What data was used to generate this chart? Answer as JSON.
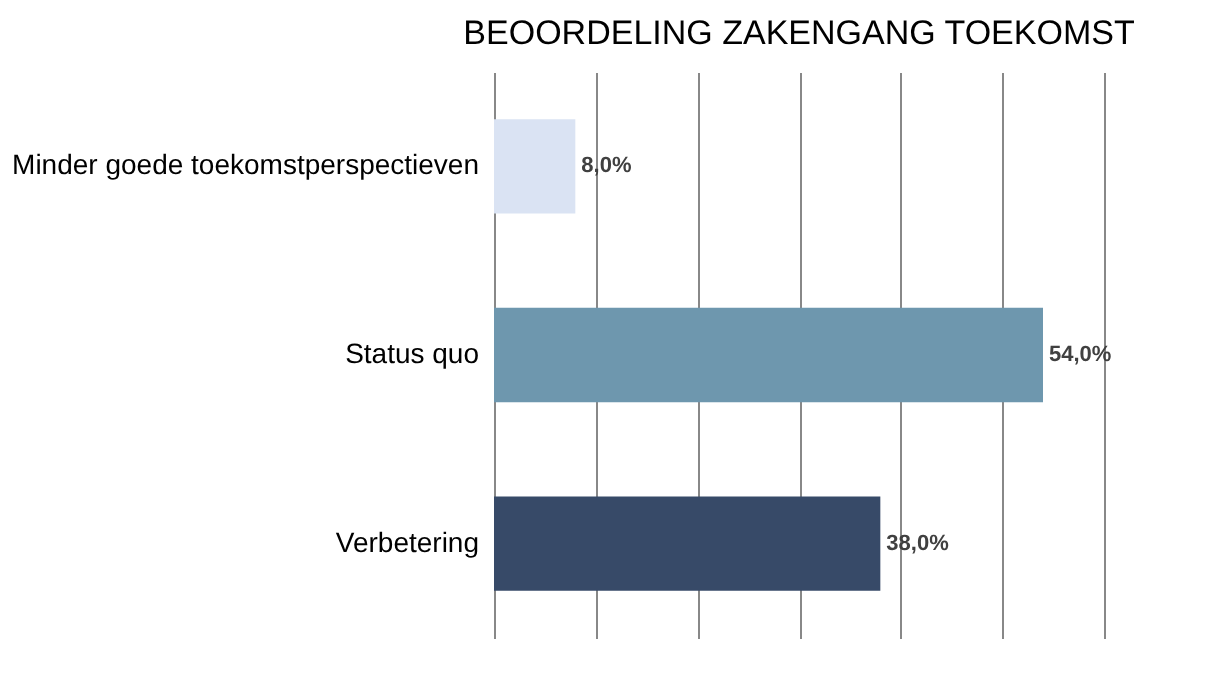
{
  "chart_data": {
    "type": "bar",
    "orientation": "horizontal",
    "title": "BEOORDELING ZAKENGANG TOEKOMST",
    "categories": [
      "Minder goede toekomstperspectieven",
      "Status quo",
      "Verbetering"
    ],
    "values": [
      8,
      54,
      38
    ],
    "colors": [
      "#dae3f3",
      "#6e97ae",
      "#374a68"
    ],
    "value_labels": [
      "8,0%",
      "54,0%",
      "38,0%"
    ],
    "xlim": [
      0,
      60
    ],
    "xticks": [
      {
        "value": 0,
        "label": null
      },
      {
        "value": 10,
        "label": null
      },
      {
        "value": 20,
        "label": null
      },
      {
        "value": 30,
        "label": null
      },
      {
        "value": 40,
        "label": null
      },
      {
        "value": 50,
        "label": null
      },
      {
        "value": 60,
        "label": null
      }
    ],
    "grid": "x",
    "tick_labels": "y"
  }
}
